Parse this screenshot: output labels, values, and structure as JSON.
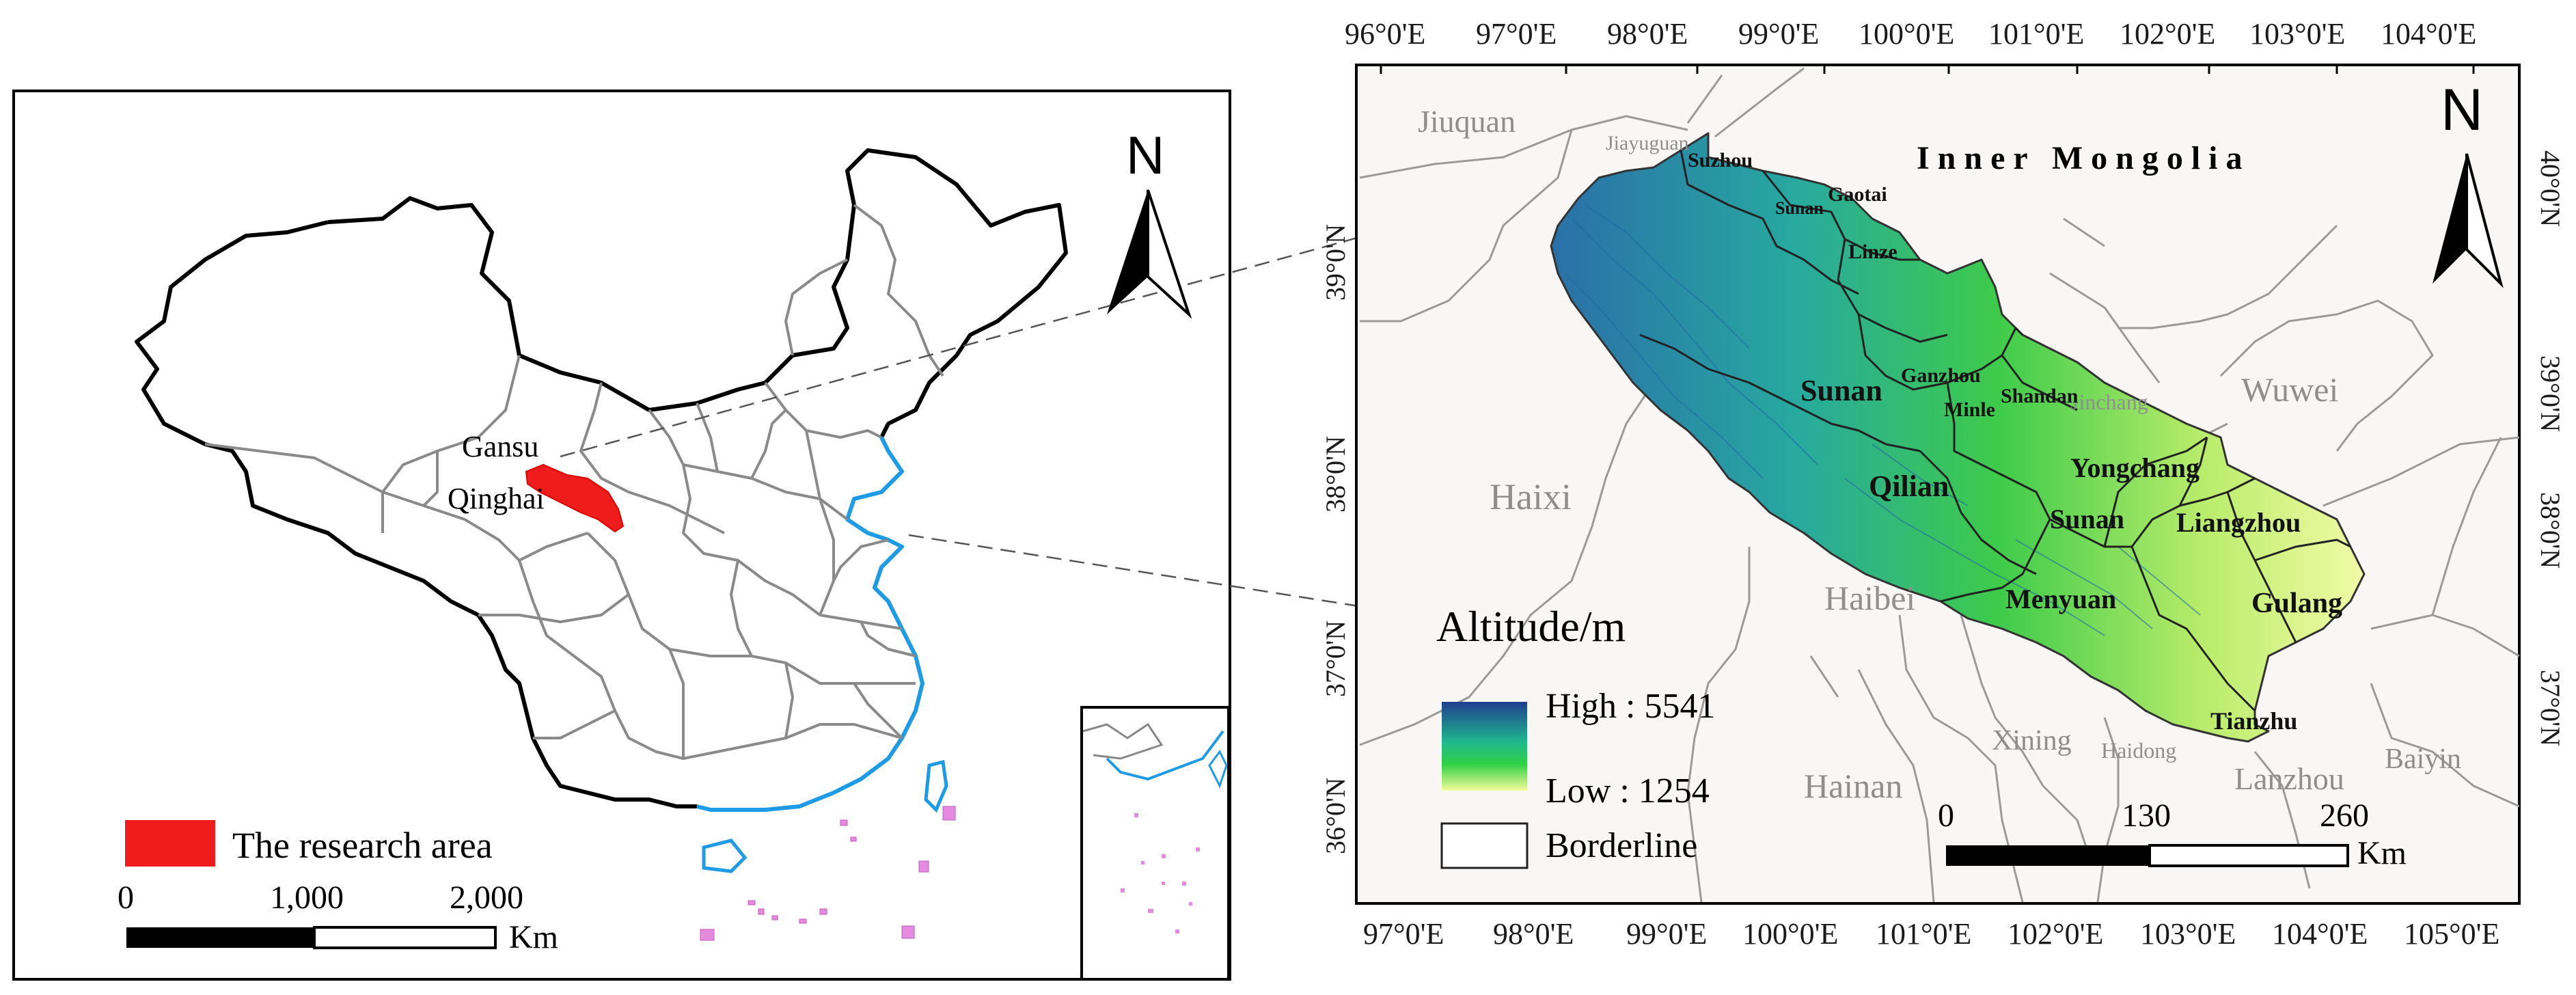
{
  "left_map": {
    "north_label": "N",
    "region_labels": {
      "gansu": "Gansu",
      "qinghai": "Qinghai"
    },
    "legend": {
      "research_area": "The research area"
    },
    "scale": {
      "ticks": [
        "0",
        "1,000",
        "2,000"
      ],
      "unit": "Km"
    }
  },
  "right_map": {
    "north_label": "N",
    "lon_ticks": [
      "96°0'E",
      "97°0'E",
      "98°0'E",
      "99°0'E",
      "100°0'E",
      "101°0'E",
      "102°0'E",
      "103°0'E",
      "104°0'E"
    ],
    "lon_ticks_bottom": [
      "97°0'E",
      "98°0'E",
      "99°0'E",
      "100°0'E",
      "101°0'E",
      "102°0'E",
      "103°0'E",
      "104°0'E",
      "105°0'E"
    ],
    "lat_ticks_left": [
      "39°0'N",
      "38°0'N",
      "37°0'N",
      "36°0'N"
    ],
    "lat_ticks_right": [
      "40°0'N",
      "39°0'N",
      "38°0'N",
      "37°0'N"
    ],
    "surrounding_labels": {
      "jiuquan": "Jiuquan",
      "jiayuguan": "Jiayuguan",
      "inner_mongolia": "I n n e r   M o n g o l i a",
      "haixi": "Haixi",
      "haibei": "Haibei",
      "hainan": "Hainan",
      "xining": "Xining",
      "haidong": "Haidong",
      "lanzhou": "Lanzhou",
      "baiyin": "Baiyin",
      "wuwei": "Wuwei",
      "jinchang": "Jinchang"
    },
    "county_labels": {
      "suzhou": "Suzhou",
      "sunan_small": "Sunan",
      "gaotai": "Gaotai",
      "linze": "Linze",
      "ganzhou": "Ganzhou",
      "sunan_big": "Sunan",
      "minle": "Minle",
      "shandan": "Shandan",
      "qilian": "Qilian",
      "yongchang": "Yongchang",
      "sunan_mid": "Sunan",
      "liangzhou": "Liangzhou",
      "menyuan": "Menyuan",
      "gulang": "Gulang",
      "tianzhu": "Tianzhu"
    },
    "legend": {
      "title": "Altitude/m",
      "high": "High : 5541",
      "low": "Low : 1254",
      "border": "Borderline",
      "colors": {
        "high": "#1f3f8f",
        "mid": "#1fbf70",
        "low": "#f4fb9a"
      }
    },
    "scale": {
      "ticks": [
        "0",
        "130",
        "260"
      ],
      "unit": "Km"
    }
  }
}
